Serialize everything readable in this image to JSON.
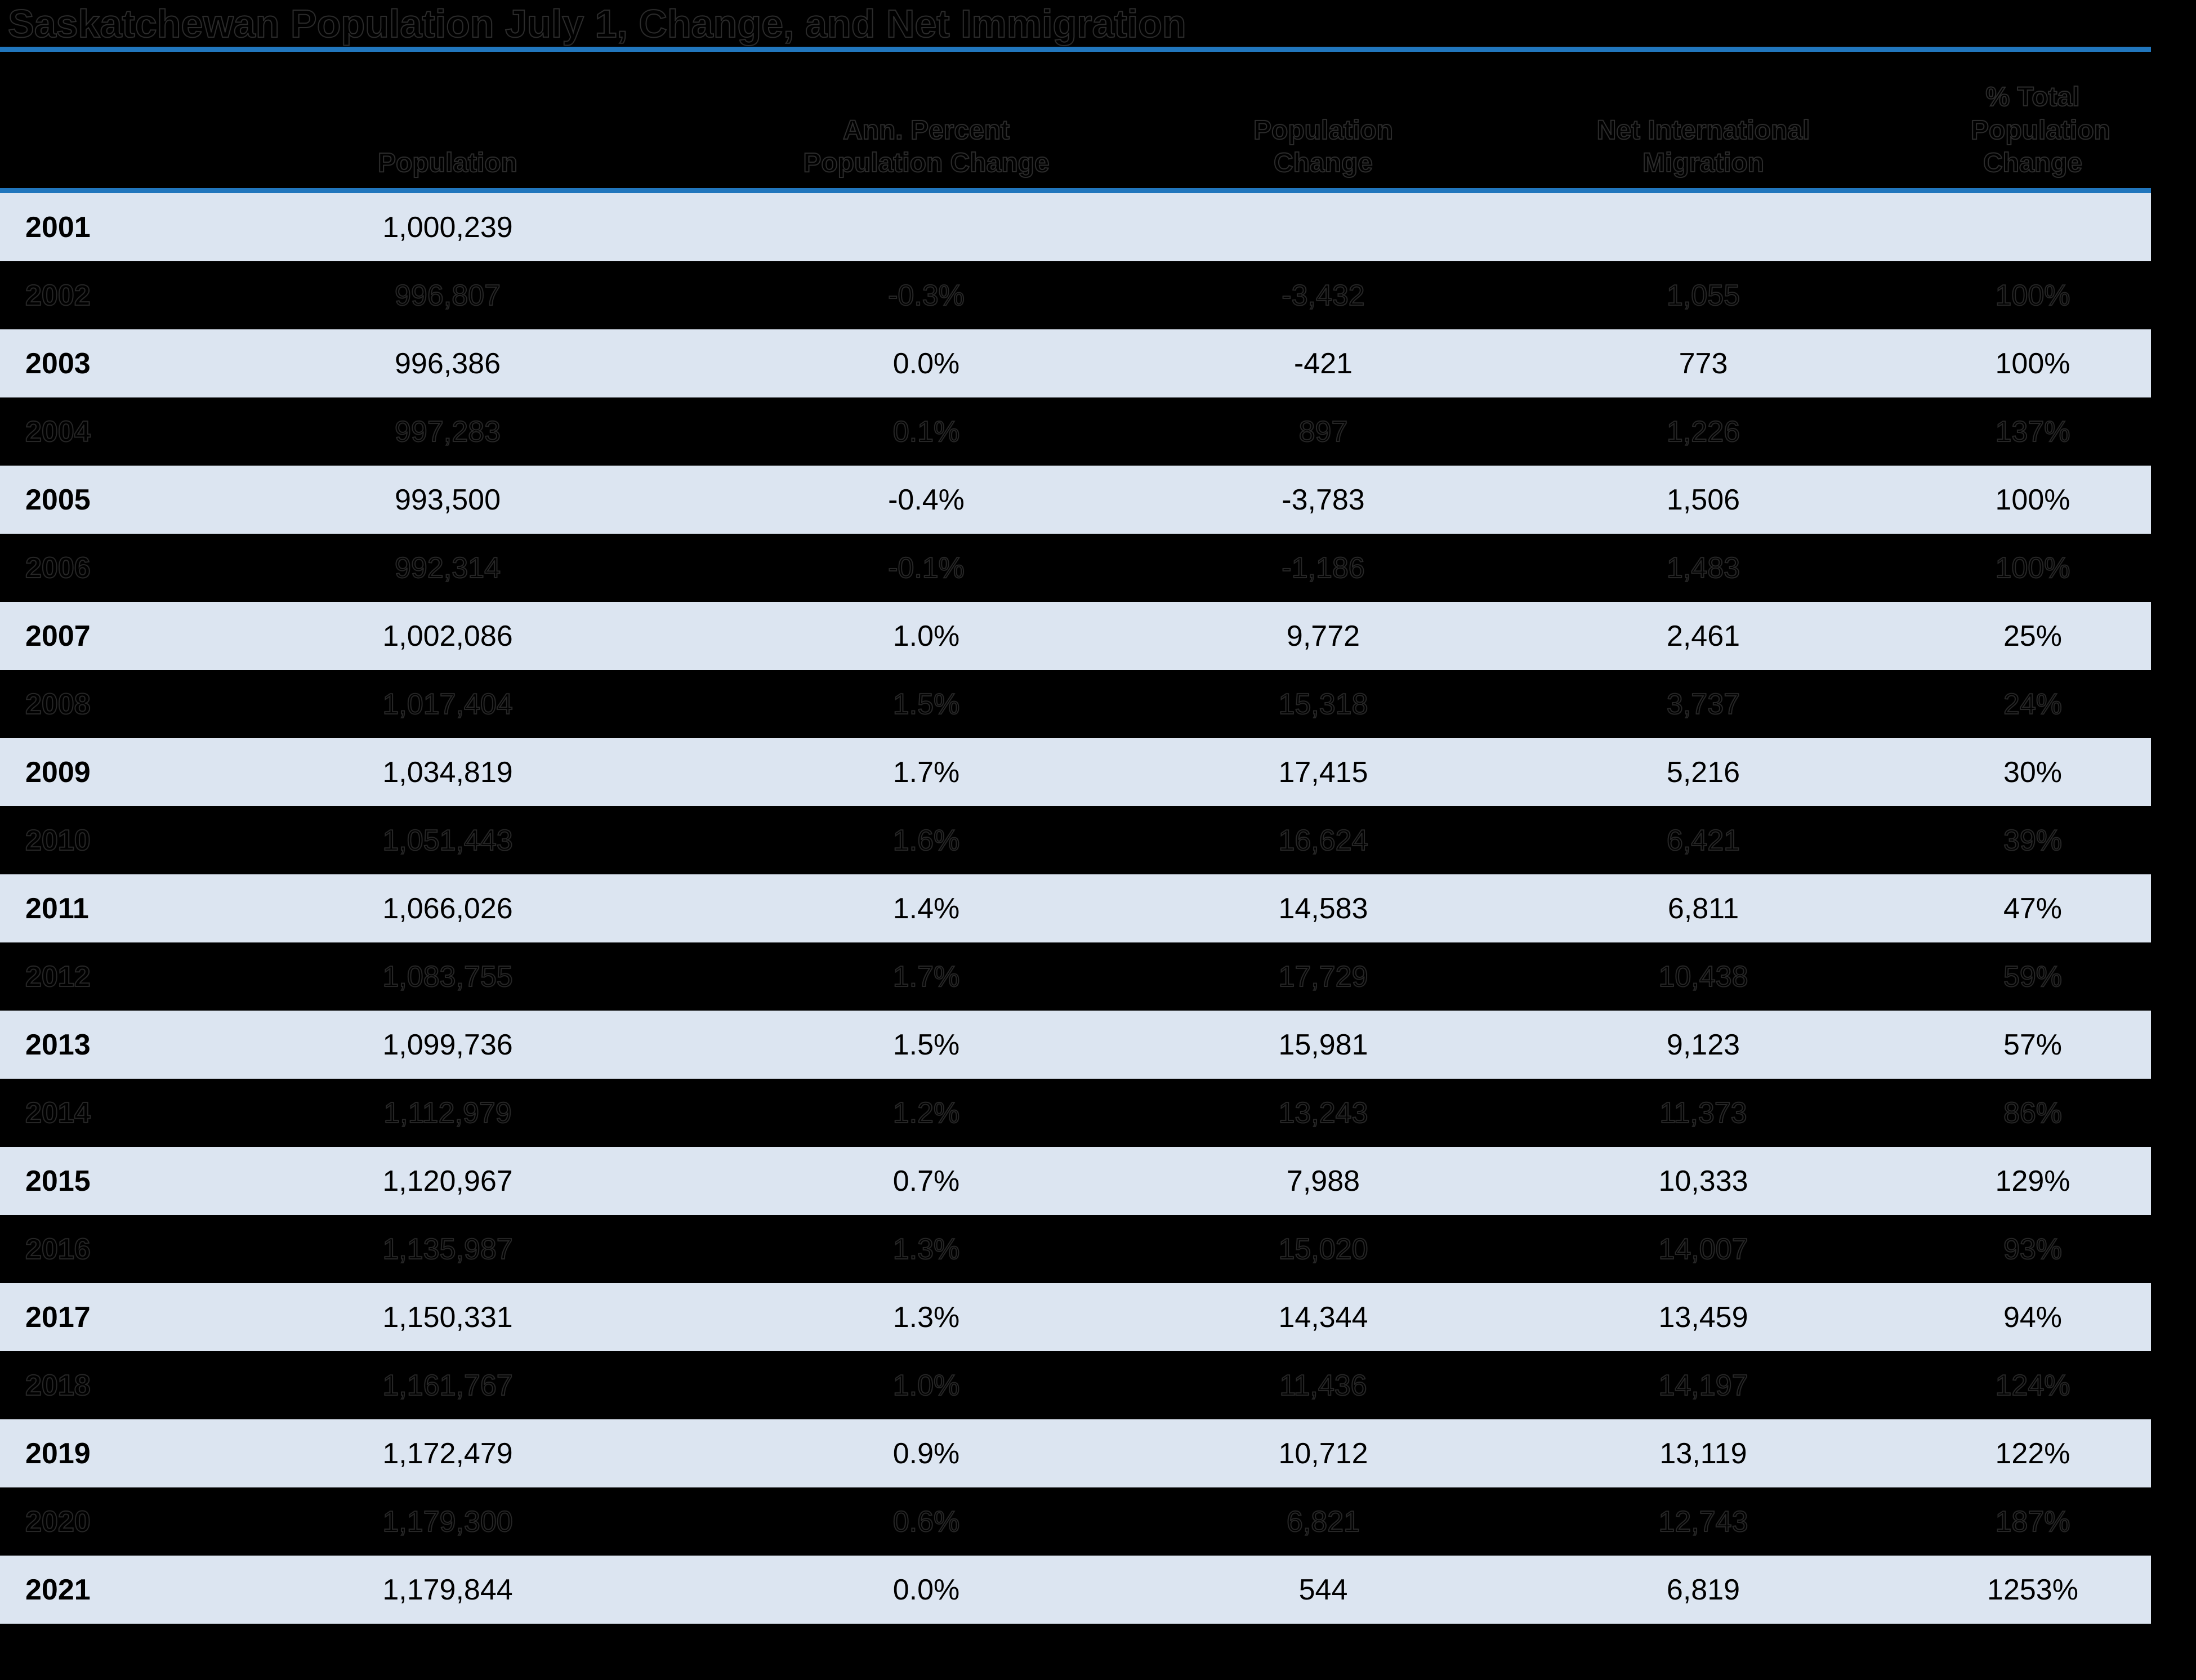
{
  "title": "Saskatchewan Population July 1, Change, and Net Immigration",
  "colors": {
    "accent_line": "#2176BD",
    "band_light": "#DCE5F1",
    "band_dark": "#000000",
    "text": "#000000"
  },
  "table": {
    "columns": [
      {
        "id": "year",
        "lines": []
      },
      {
        "id": "population",
        "lines": [
          "Population"
        ]
      },
      {
        "id": "ann_pct",
        "lines": [
          "Ann. Percent",
          "Population Change"
        ]
      },
      {
        "id": "pop_change",
        "lines": [
          "Population Change"
        ]
      },
      {
        "id": "net_intl",
        "lines": [
          "Net International",
          "Migration"
        ]
      },
      {
        "id": "pct_total",
        "lines": [
          "% Total",
          "Population",
          "Change"
        ]
      }
    ],
    "rows": [
      {
        "year": "2001",
        "population": "1,000,239",
        "ann_pct": "",
        "pop_change": "",
        "net_intl": "",
        "pct_total": ""
      },
      {
        "year": "2002",
        "population": "996,807",
        "ann_pct": "-0.3%",
        "pop_change": "-3,432",
        "net_intl": "1,055",
        "pct_total": "100%"
      },
      {
        "year": "2003",
        "population": "996,386",
        "ann_pct": "0.0%",
        "pop_change": "-421",
        "net_intl": "773",
        "pct_total": "100%"
      },
      {
        "year": "2004",
        "population": "997,283",
        "ann_pct": "0.1%",
        "pop_change": "897",
        "net_intl": "1,226",
        "pct_total": "137%"
      },
      {
        "year": "2005",
        "population": "993,500",
        "ann_pct": "-0.4%",
        "pop_change": "-3,783",
        "net_intl": "1,506",
        "pct_total": "100%"
      },
      {
        "year": "2006",
        "population": "992,314",
        "ann_pct": "-0.1%",
        "pop_change": "-1,186",
        "net_intl": "1,483",
        "pct_total": "100%"
      },
      {
        "year": "2007",
        "population": "1,002,086",
        "ann_pct": "1.0%",
        "pop_change": "9,772",
        "net_intl": "2,461",
        "pct_total": "25%"
      },
      {
        "year": "2008",
        "population": "1,017,404",
        "ann_pct": "1.5%",
        "pop_change": "15,318",
        "net_intl": "3,737",
        "pct_total": "24%"
      },
      {
        "year": "2009",
        "population": "1,034,819",
        "ann_pct": "1.7%",
        "pop_change": "17,415",
        "net_intl": "5,216",
        "pct_total": "30%"
      },
      {
        "year": "2010",
        "population": "1,051,443",
        "ann_pct": "1.6%",
        "pop_change": "16,624",
        "net_intl": "6,421",
        "pct_total": "39%"
      },
      {
        "year": "2011",
        "population": "1,066,026",
        "ann_pct": "1.4%",
        "pop_change": "14,583",
        "net_intl": "6,811",
        "pct_total": "47%"
      },
      {
        "year": "2012",
        "population": "1,083,755",
        "ann_pct": "1.7%",
        "pop_change": "17,729",
        "net_intl": "10,438",
        "pct_total": "59%"
      },
      {
        "year": "2013",
        "population": "1,099,736",
        "ann_pct": "1.5%",
        "pop_change": "15,981",
        "net_intl": "9,123",
        "pct_total": "57%"
      },
      {
        "year": "2014",
        "population": "1,112,979",
        "ann_pct": "1.2%",
        "pop_change": "13,243",
        "net_intl": "11,373",
        "pct_total": "86%"
      },
      {
        "year": "2015",
        "population": "1,120,967",
        "ann_pct": "0.7%",
        "pop_change": "7,988",
        "net_intl": "10,333",
        "pct_total": "129%"
      },
      {
        "year": "2016",
        "population": "1,135,987",
        "ann_pct": "1.3%",
        "pop_change": "15,020",
        "net_intl": "14,007",
        "pct_total": "93%"
      },
      {
        "year": "2017",
        "population": "1,150,331",
        "ann_pct": "1.3%",
        "pop_change": "14,344",
        "net_intl": "13,459",
        "pct_total": "94%"
      },
      {
        "year": "2018",
        "population": "1,161,767",
        "ann_pct": "1.0%",
        "pop_change": "11,436",
        "net_intl": "14,197",
        "pct_total": "124%"
      },
      {
        "year": "2019",
        "population": "1,172,479",
        "ann_pct": "0.9%",
        "pop_change": "10,712",
        "net_intl": "13,119",
        "pct_total": "122%"
      },
      {
        "year": "2020",
        "population": "1,179,300",
        "ann_pct": "0.6%",
        "pop_change": "6,821",
        "net_intl": "12,743",
        "pct_total": "187%"
      },
      {
        "year": "2021",
        "population": "1,179,844",
        "ann_pct": "0.0%",
        "pop_change": "544",
        "net_intl": "6,819",
        "pct_total": "1253%"
      }
    ]
  }
}
